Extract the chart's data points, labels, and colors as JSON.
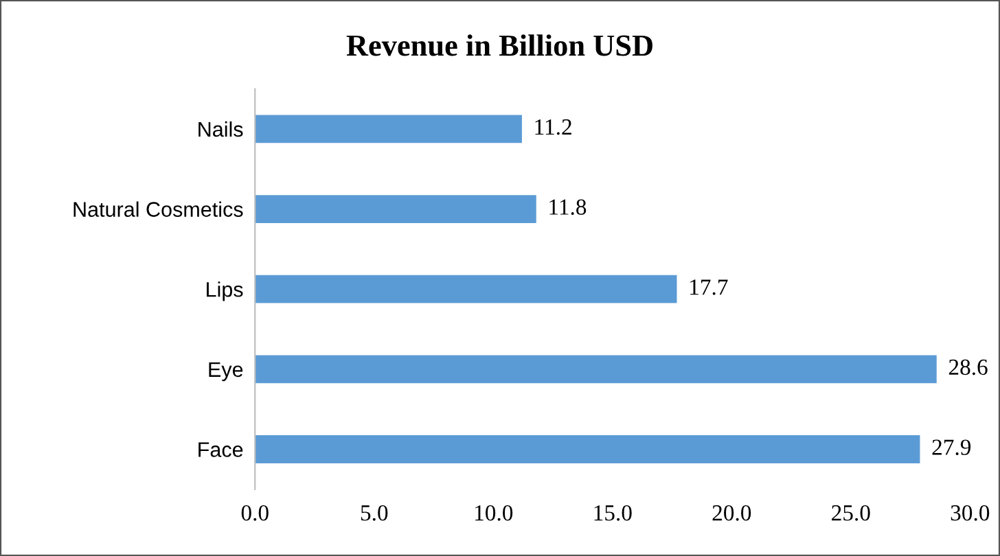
{
  "chart_data": {
    "type": "bar",
    "orientation": "horizontal",
    "title": "Revenue in Billion USD",
    "categories": [
      "Nails",
      "Natural Cosmetics",
      "Lips",
      "Eye",
      "Face"
    ],
    "values": [
      11.2,
      11.8,
      17.7,
      28.6,
      27.9
    ],
    "color": "#5b9bd5",
    "xlim": [
      0,
      30
    ],
    "xticks": [
      {
        "value": 0,
        "label": "0.0"
      },
      {
        "value": 5,
        "label": "5.0"
      },
      {
        "value": 10,
        "label": "10.0"
      },
      {
        "value": 15,
        "label": "15.0"
      },
      {
        "value": 20,
        "label": "20.0"
      },
      {
        "value": 25,
        "label": "25.0"
      },
      {
        "value": 30,
        "label": "30.0"
      }
    ],
    "data_labels": true,
    "grid": false,
    "legend": false
  }
}
